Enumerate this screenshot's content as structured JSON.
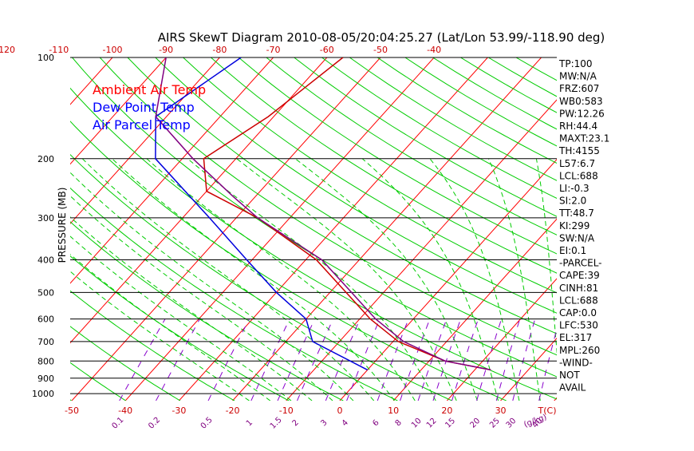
{
  "colors": {
    "isotherm": "#ff0000",
    "dry_adiabat": "#00cc00",
    "moist_adiabat": "#00cc00",
    "mixing_ratio": "#8800cc",
    "ambient": "#cc0000",
    "dewpoint": "#0000dd",
    "parcel": "#800080",
    "text": "#000000",
    "temp_ticks": "#cc0000",
    "mixing_ticks": "#800080",
    "legend_ambient": "#ff0000",
    "legend_dewpoint": "#0000ff",
    "legend_parcel": "#0000ff"
  },
  "chart_data": {
    "type": "line",
    "title": "AIRS SkewT Diagram 2010-08-05/20:04:25.27 (Lat/Lon 53.99/-118.90 deg)",
    "ylabel": "PRESSURE (MB)",
    "pressure_ticks": [
      "100",
      "200",
      "300",
      "400",
      "500",
      "600",
      "700",
      "800",
      "900",
      "1000"
    ],
    "top_temp_ticks": [
      "-120",
      "-110",
      "-100",
      "-90",
      "-80",
      "-70",
      "-60",
      "-50",
      "-40"
    ],
    "bottom_temp_ticks": [
      "-50",
      "-40",
      "-30",
      "-20",
      "-10",
      "0",
      "10",
      "20",
      "30"
    ],
    "bottom_unit": "T(C)",
    "mixing_ratio_ticks": [
      "0.1",
      "0.2",
      "0.5",
      "1",
      "1.5",
      "2",
      "3",
      "4",
      "6",
      "8",
      "10",
      "12",
      "15",
      "20",
      "25",
      "30",
      "40"
    ],
    "mixing_ratio_unit": "(g/kg)",
    "legend": [
      "Ambient Air Temp",
      "Dew Point Temp",
      "Air Parcel Temp"
    ],
    "series": [
      {
        "name": "Ambient Air Temp",
        "points": [
          {
            "p": 100,
            "t": -57
          },
          {
            "p": 150,
            "t": -61
          },
          {
            "p": 200,
            "t": -66
          },
          {
            "p": 250,
            "t": -60
          },
          {
            "p": 300,
            "t": -46
          },
          {
            "p": 400,
            "t": -28
          },
          {
            "p": 500,
            "t": -17
          },
          {
            "p": 600,
            "t": -8
          },
          {
            "p": 700,
            "t": 1
          },
          {
            "p": 800,
            "t": 13
          },
          {
            "p": 850,
            "t": 23
          }
        ]
      },
      {
        "name": "Dew Point Temp",
        "points": [
          {
            "p": 100,
            "t": -76
          },
          {
            "p": 150,
            "t": -82
          },
          {
            "p": 200,
            "t": -75
          },
          {
            "p": 300,
            "t": -55
          },
          {
            "p": 400,
            "t": -41
          },
          {
            "p": 500,
            "t": -30
          },
          {
            "p": 600,
            "t": -20
          },
          {
            "p": 700,
            "t": -15
          },
          {
            "p": 850,
            "t": 0
          }
        ]
      },
      {
        "name": "Air Parcel Temp",
        "points": [
          {
            "p": 100,
            "t": -90
          },
          {
            "p": 150,
            "t": -82
          },
          {
            "p": 200,
            "t": -68
          },
          {
            "p": 260,
            "t": -54
          },
          {
            "p": 300,
            "t": -46
          },
          {
            "p": 400,
            "t": -27
          },
          {
            "p": 500,
            "t": -16
          },
          {
            "p": 600,
            "t": -7
          },
          {
            "p": 700,
            "t": 2
          },
          {
            "p": 800,
            "t": 13
          },
          {
            "p": 850,
            "t": 23
          }
        ]
      }
    ]
  },
  "indices": [
    "TP:100",
    "MW:N/A",
    "FRZ:607",
    "WB0:583",
    "PW:12.26",
    "RH:44.4",
    "MAXT:23.1",
    "TH:4155",
    "L57:6.7",
    "LCL:688",
    "LI:-0.3",
    "SI:2.0",
    "TT:48.7",
    "KI:299",
    "SW:N/A",
    "EI:0.1",
    "-PARCEL-",
    "CAPE:39",
    "CINH:81",
    "LCL:688",
    "CAP:0.0",
    "LFC:530",
    "EL:317",
    "MPL:260",
    "-WIND-",
    "NOT",
    "AVAIL"
  ]
}
